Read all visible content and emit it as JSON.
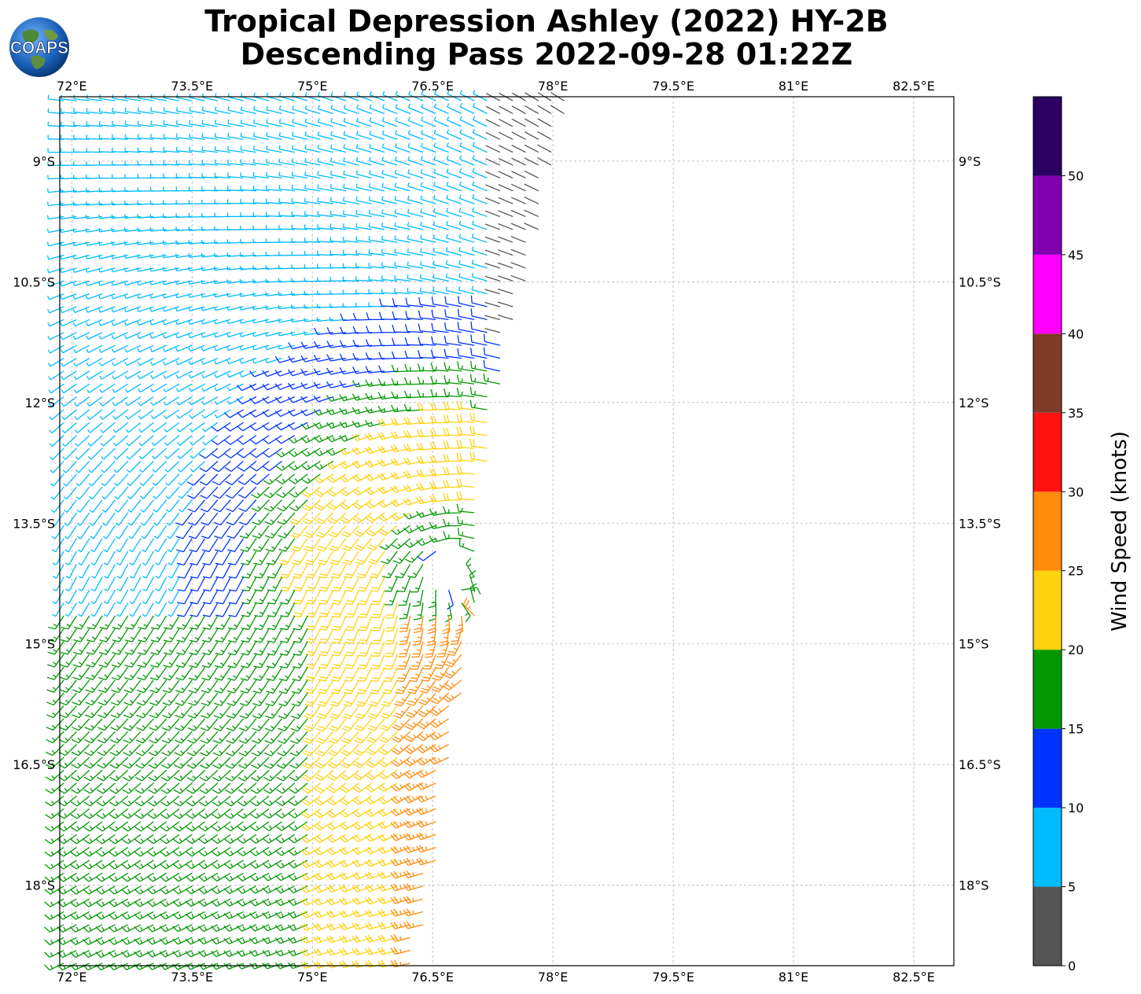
{
  "title": {
    "line1": "Tropical Depression Ashley (2022) HY-2B",
    "line2": "Descending Pass 2022-09-28 01:22Z"
  },
  "logo": {
    "text": "COAPS",
    "icon": "globe-icon"
  },
  "colorbar": {
    "label": "Wind Speed (knots)",
    "ticks": [
      "0",
      "5",
      "10",
      "15",
      "20",
      "25",
      "30",
      "35",
      "40",
      "45",
      "50"
    ],
    "bins": [
      {
        "min": 0,
        "max": 5,
        "color": "#555555"
      },
      {
        "min": 5,
        "max": 10,
        "color": "#00bbff"
      },
      {
        "min": 10,
        "max": 15,
        "color": "#0033ff"
      },
      {
        "min": 15,
        "max": 20,
        "color": "#009900"
      },
      {
        "min": 20,
        "max": 25,
        "color": "#ffd20f"
      },
      {
        "min": 25,
        "max": 30,
        "color": "#ff8c0a"
      },
      {
        "min": 30,
        "max": 35,
        "color": "#ff1111"
      },
      {
        "min": 35,
        "max": 40,
        "color": "#7f3b28"
      },
      {
        "min": 40,
        "max": 45,
        "color": "#ff00ff"
      },
      {
        "min": 45,
        "max": 50,
        "color": "#8000b0"
      },
      {
        "min": 50,
        "max": 55,
        "color": "#2a0060"
      }
    ]
  },
  "map": {
    "lon_range": [
      71.85,
      83.0
    ],
    "lat_range": [
      -19.0,
      -8.2
    ],
    "lon_ticks": [
      {
        "value": 72.0,
        "label": "72°E"
      },
      {
        "value": 73.5,
        "label": "73.5°E"
      },
      {
        "value": 75.0,
        "label": "75°E"
      },
      {
        "value": 76.5,
        "label": "76.5°E"
      },
      {
        "value": 78.0,
        "label": "78°E"
      },
      {
        "value": 79.5,
        "label": "79.5°E"
      },
      {
        "value": 81.0,
        "label": "81°E"
      },
      {
        "value": 82.5,
        "label": "82.5°E"
      }
    ],
    "lat_ticks": [
      {
        "value": -9.0,
        "label": "9°S"
      },
      {
        "value": -10.5,
        "label": "10.5°S"
      },
      {
        "value": -12.0,
        "label": "12°S"
      },
      {
        "value": -13.5,
        "label": "13.5°S"
      },
      {
        "value": -15.0,
        "label": "15°S"
      },
      {
        "value": -16.5,
        "label": "16.5°S"
      },
      {
        "value": -18.0,
        "label": "18°S"
      }
    ],
    "gridlines": true,
    "storm_center": {
      "lon": 76.75,
      "lat": -14.05
    },
    "swath_east_edge": [
      {
        "lat": -8.2,
        "lon": 78.2
      },
      {
        "lat": -10.0,
        "lon": 77.8
      },
      {
        "lat": -11.5,
        "lon": 77.4
      },
      {
        "lat": -12.5,
        "lon": 77.2
      },
      {
        "lat": -14.0,
        "lon": 77.1
      },
      {
        "lat": -15.0,
        "lon": 77.0
      },
      {
        "lat": -16.5,
        "lon": 76.7
      },
      {
        "lat": -18.0,
        "lon": 76.5
      },
      {
        "lat": -19.0,
        "lon": 76.3
      }
    ],
    "barb_spacing_deg": 0.16
  }
}
